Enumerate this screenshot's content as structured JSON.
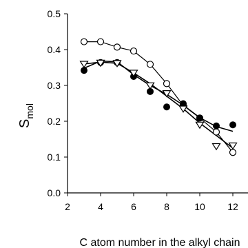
{
  "chart_data": {
    "type": "scatter",
    "title": "",
    "xlabel": "C atom number in the alkyl chain",
    "ylabel": "S",
    "ylabel_subscript": "mol",
    "xlim": [
      2,
      13
    ],
    "ylim": [
      0.0,
      0.5
    ],
    "x_ticks": [
      2,
      4,
      6,
      8,
      10,
      12
    ],
    "y_ticks": [
      "0.0",
      "0.1",
      "0.2",
      "0.3",
      "0.4",
      "0.5"
    ],
    "grid": false,
    "series": [
      {
        "marker": "open-circle",
        "points": [
          [
            3,
            0.422
          ],
          [
            4,
            0.422
          ],
          [
            5,
            0.407
          ],
          [
            6,
            0.396
          ],
          [
            7,
            0.359
          ],
          [
            8,
            0.305
          ],
          [
            9,
            0.244
          ],
          [
            10,
            0.209
          ],
          [
            11,
            0.17
          ],
          [
            12,
            0.113
          ]
        ],
        "line": [
          [
            3,
            0.422
          ],
          [
            4,
            0.422
          ],
          [
            5,
            0.407
          ],
          [
            6,
            0.396
          ],
          [
            7,
            0.359
          ],
          [
            8,
            0.305
          ],
          [
            9,
            0.244
          ],
          [
            10,
            0.209
          ],
          [
            11,
            0.17
          ],
          [
            12,
            0.113
          ]
        ]
      },
      {
        "marker": "filled-circle",
        "points": [
          [
            3,
            0.342
          ],
          [
            4,
            0.364
          ],
          [
            5,
            0.364
          ],
          [
            6,
            0.325
          ],
          [
            7,
            0.283
          ],
          [
            8,
            0.24
          ],
          [
            9,
            0.249
          ],
          [
            10,
            0.209
          ],
          [
            11,
            0.187
          ],
          [
            12,
            0.19
          ]
        ],
        "line": [
          [
            3,
            0.348
          ],
          [
            4,
            0.368
          ],
          [
            5,
            0.366
          ],
          [
            6,
            0.33
          ],
          [
            7,
            0.3
          ],
          [
            8,
            0.275
          ],
          [
            9,
            0.245
          ],
          [
            10,
            0.21
          ],
          [
            11,
            0.185
          ],
          [
            12,
            0.172
          ]
        ]
      },
      {
        "marker": "open-triangle-down",
        "points": [
          [
            3,
            0.36
          ],
          [
            4,
            0.363
          ],
          [
            5,
            0.362
          ],
          [
            6,
            0.335
          ],
          [
            7,
            0.3
          ],
          [
            8,
            0.278
          ],
          [
            9,
            0.235
          ],
          [
            10,
            0.19
          ],
          [
            11,
            0.13
          ],
          [
            12,
            0.132
          ]
        ],
        "line": [
          [
            3,
            0.36
          ],
          [
            4,
            0.365
          ],
          [
            5,
            0.362
          ],
          [
            6,
            0.335
          ],
          [
            7,
            0.305
          ],
          [
            8,
            0.27
          ],
          [
            9,
            0.235
          ],
          [
            10,
            0.195
          ],
          [
            11,
            0.16
          ],
          [
            12,
            0.125
          ]
        ]
      }
    ]
  }
}
